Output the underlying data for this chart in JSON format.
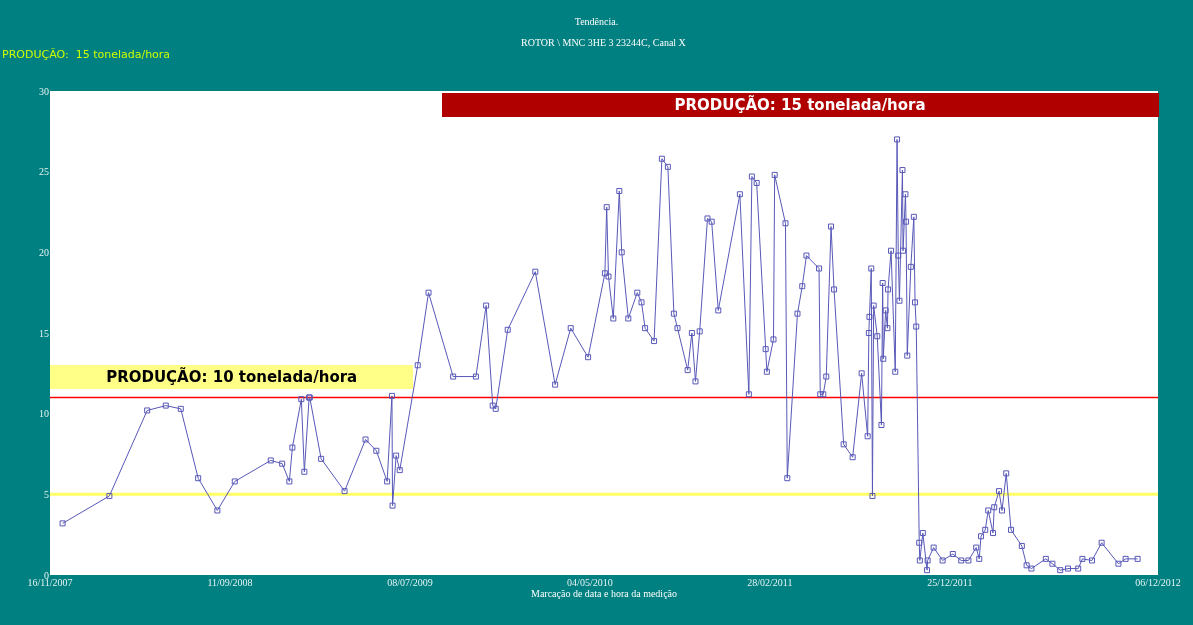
{
  "chart_data": {
    "type": "line",
    "title": "Tendência.",
    "subtitle": "ROTOR \\ MNC 3HE 3 23244C, Canal X",
    "xlabel": "Marcação de data e hora da medição",
    "annotations": [
      "PRODUÇÃO:  15 tonelada/hora",
      "PRODUÇÃO: 15 tonelada/hora",
      "PRODUÇÃO: 10 tonelada/hora"
    ],
    "xlim": [
      "2007-11-16",
      "2012-12-06"
    ],
    "xticks": [
      {
        "value": "2007-11-16",
        "label": "16/11/2007"
      },
      {
        "value": "2008-09-11",
        "label": "11/09/2008"
      },
      {
        "value": "2009-07-08",
        "label": "08/07/2009"
      },
      {
        "value": "2010-05-04",
        "label": "04/05/2010"
      },
      {
        "value": "2011-02-28",
        "label": "28/02/2011"
      },
      {
        "value": "2011-12-25",
        "label": "25/12/2011"
      },
      {
        "value": "2012-12-06",
        "label": "06/12/2012"
      }
    ],
    "ylim": [
      0,
      30
    ],
    "yticks": [
      0,
      5,
      10,
      15,
      20,
      25,
      30
    ],
    "grid": false,
    "legend": false,
    "marker": "square",
    "line_style": "solid",
    "ref_lines": [
      {
        "axis": "y",
        "value": 11,
        "color": "#ff0000"
      },
      {
        "axis": "y",
        "value": 5,
        "color": "#ffff66"
      }
    ],
    "x": [
      "2007-12-07",
      "2008-02-23",
      "2008-04-26",
      "2008-05-27",
      "2008-06-21",
      "2008-07-20",
      "2008-08-21",
      "2008-09-19",
      "2008-11-18",
      "2008-12-07",
      "2008-12-19",
      "2008-12-24",
      "2009-01-08",
      "2009-01-13",
      "2009-01-21",
      "2009-01-22",
      "2009-02-10",
      "2009-03-21",
      "2009-04-25",
      "2009-05-13",
      "2009-05-31",
      "2009-06-08",
      "2009-06-09",
      "2009-06-15",
      "2009-06-21",
      "2009-07-21",
      "2009-08-08",
      "2009-09-18",
      "2009-10-26",
      "2009-11-12",
      "2009-11-23",
      "2009-11-28",
      "2009-12-18",
      "2010-02-02",
      "2010-03-07",
      "2010-04-02",
      "2010-05-01",
      "2010-05-29",
      "2010-06-01",
      "2010-06-04",
      "2010-06-12",
      "2010-06-22",
      "2010-06-26",
      "2010-07-07",
      "2010-07-22",
      "2010-07-29",
      "2010-08-04",
      "2010-08-19",
      "2010-09-01",
      "2010-09-11",
      "2010-09-21",
      "2010-09-27",
      "2010-10-14",
      "2010-10-21",
      "2010-10-27",
      "2010-11-03",
      "2010-11-16",
      "2010-11-23",
      "2010-12-04",
      "2011-01-09",
      "2011-01-24",
      "2011-01-29",
      "2011-02-06",
      "2011-02-21",
      "2011-02-23",
      "2011-03-06",
      "2011-03-08",
      "2011-03-26",
      "2011-03-29",
      "2011-04-15",
      "2011-04-23",
      "2011-04-30",
      "2011-05-21",
      "2011-05-23",
      "2011-05-28",
      "2011-06-02",
      "2011-06-10",
      "2011-06-15",
      "2011-07-01",
      "2011-07-16",
      "2011-07-31",
      "2011-08-10",
      "2011-08-12",
      "2011-08-13",
      "2011-08-16",
      "2011-08-18",
      "2011-08-20",
      "2011-08-26",
      "2011-09-02",
      "2011-09-04",
      "2011-09-05",
      "2011-09-09",
      "2011-09-12",
      "2011-09-13",
      "2011-09-18",
      "2011-09-25",
      "2011-09-28",
      "2011-09-30",
      "2011-10-02",
      "2011-10-07",
      "2011-10-08",
      "2011-10-12",
      "2011-10-13",
      "2011-10-15",
      "2011-10-21",
      "2011-10-26",
      "2011-10-28",
      "2011-10-30",
      "2011-11-04",
      "2011-11-05",
      "2011-11-10",
      "2011-11-17",
      "2011-11-18",
      "2011-11-28",
      "2011-12-13",
      "2011-12-30",
      "2012-01-13",
      "2012-01-25",
      "2012-02-07",
      "2012-02-12",
      "2012-02-15",
      "2012-02-22",
      "2012-02-27",
      "2012-03-06",
      "2012-03-08",
      "2012-03-16",
      "2012-03-21",
      "2012-03-28",
      "2012-04-05",
      "2012-04-23",
      "2012-05-01",
      "2012-05-09",
      "2012-06-02",
      "2012-06-13",
      "2012-06-26",
      "2012-07-09",
      "2012-07-26",
      "2012-08-02",
      "2012-08-18",
      "2012-09-03",
      "2012-10-01",
      "2012-10-13",
      "2012-11-02"
    ],
    "series": [
      {
        "color": "#5858b8",
        "values": [
          3.2,
          4.9,
          10.2,
          10.5,
          10.3,
          6.0,
          4.0,
          5.8,
          7.1,
          6.9,
          5.8,
          7.9,
          10.9,
          6.4,
          11.0,
          11.0,
          7.2,
          5.2,
          8.4,
          7.7,
          5.8,
          11.1,
          4.3,
          7.4,
          6.5,
          13.0,
          17.5,
          12.3,
          12.3,
          16.7,
          10.5,
          10.3,
          15.2,
          18.8,
          11.8,
          15.3,
          13.5,
          18.7,
          22.8,
          18.5,
          15.9,
          23.8,
          20.0,
          15.9,
          17.5,
          16.9,
          15.3,
          14.5,
          25.8,
          25.3,
          16.2,
          15.3,
          12.7,
          15.0,
          12.0,
          15.1,
          22.1,
          21.9,
          16.4,
          23.6,
          11.2,
          24.7,
          24.3,
          14.0,
          12.6,
          14.6,
          24.8,
          21.8,
          6.0,
          16.2,
          17.9,
          19.8,
          19.0,
          11.2,
          11.2,
          12.3,
          21.6,
          17.7,
          8.1,
          7.3,
          12.5,
          8.6,
          15.0,
          16.0,
          19.0,
          4.9,
          16.7,
          14.8,
          9.3,
          18.1,
          13.4,
          16.4,
          15.3,
          17.7,
          20.1,
          12.6,
          27.0,
          19.8,
          17.0,
          25.1,
          20.1,
          23.6,
          21.9,
          13.6,
          19.1,
          22.2,
          16.9,
          15.4,
          2.0,
          0.9,
          2.6,
          0.3,
          0.9,
          1.7,
          0.9,
          1.3,
          0.9,
          0.9,
          1.7,
          1.0,
          2.4,
          2.8,
          4.0,
          2.6,
          4.2,
          5.2,
          4.0,
          6.3,
          2.8,
          1.8,
          0.6,
          0.4,
          1.0,
          0.7,
          0.3,
          0.4,
          0.4,
          1.0,
          0.9,
          2.0,
          0.7,
          1.0,
          1.0
        ]
      }
    ]
  }
}
